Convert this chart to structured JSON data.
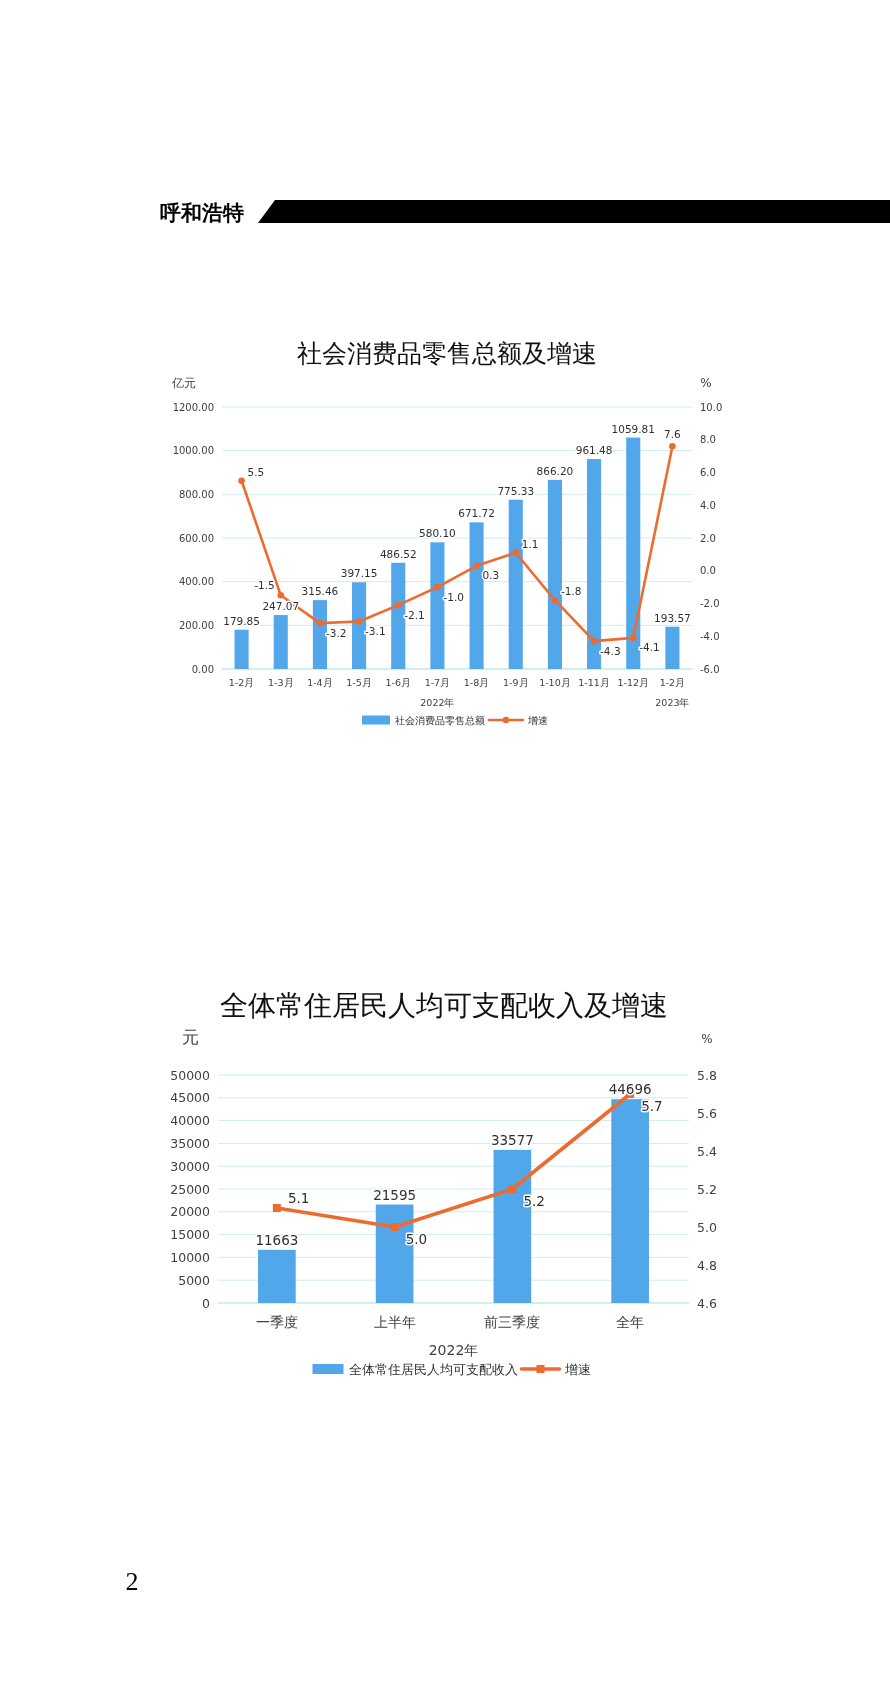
{
  "chart_data": [
    {
      "type": "bar",
      "title": "社会消费品零售总额及增速",
      "ylabel": "亿元",
      "y2label": "%",
      "xlabel": "2022年",
      "annotations": [
        "呼和浩特"
      ],
      "categories": [
        "1-2月",
        "1-3月",
        "1-4月",
        "1-5月",
        "1-6月",
        "1-7月",
        "1-8月",
        "1-9月",
        "1-10月",
        "1-11月",
        "1-12月",
        "1-2月\n2023年"
      ],
      "series": [
        {
          "name": "社会消费品零售总额",
          "type": "bar",
          "color": "#52a7ea",
          "values": [
            179.85,
            247.07,
            315.46,
            397.15,
            486.52,
            580.1,
            671.72,
            775.33,
            866.2,
            961.48,
            1059.81,
            193.57
          ],
          "value_labels": [
            "179.85",
            "247.07",
            "315.46",
            "397.15",
            "486.52",
            "580.10",
            "671.72",
            "775.33",
            "866.20",
            "961.48",
            "1059.81",
            "193.57"
          ]
        },
        {
          "name": "增速",
          "type": "line",
          "axis": "y2",
          "color": "#ed6b2f",
          "values": [
            5.5,
            -1.5,
            -3.2,
            -3.1,
            -2.1,
            -1.0,
            0.3,
            1.1,
            -1.8,
            -4.3,
            -4.1,
            7.6
          ],
          "value_labels": [
            "5.5",
            "-1.5",
            "-3.2",
            "-3.1",
            "-2.1",
            "-1.0",
            "0.3",
            "1.1",
            "-1.8",
            "-4.3",
            "-4.1",
            "7.6"
          ]
        }
      ],
      "ylim": [
        0,
        1200
      ],
      "yticks": [
        {
          "value": 0,
          "label": "0.00"
        },
        {
          "value": 200,
          "label": "200.00"
        },
        {
          "value": 400,
          "label": "400.00"
        },
        {
          "value": 600,
          "label": "600.00"
        },
        {
          "value": 800,
          "label": "800.00"
        },
        {
          "value": 1000,
          "label": "1000.00"
        },
        {
          "value": 1200,
          "label": "1200.00"
        }
      ],
      "y2lim": [
        -6,
        10
      ],
      "y2ticks": [
        {
          "value": -6,
          "label": "-6.0"
        },
        {
          "value": -4,
          "label": "-4.0"
        },
        {
          "value": -2,
          "label": "-2.0"
        },
        {
          "value": 0,
          "label": "0.0"
        },
        {
          "value": 2,
          "label": "2.0"
        },
        {
          "value": 4,
          "label": "4.0"
        },
        {
          "value": 6,
          "label": "6.0"
        },
        {
          "value": 8,
          "label": "8.0"
        },
        {
          "value": 10,
          "label": "10.0"
        }
      ],
      "grid": "y",
      "legend": "bottom",
      "marker": "circle",
      "line_style": "solid"
    },
    {
      "type": "bar",
      "title": "全体常住居民人均可支配收入及增速",
      "ylabel": "元",
      "y2label": "%",
      "xlabel": "2022年",
      "annotations": [
        "2"
      ],
      "categories": [
        "一季度",
        "上半年",
        "前三季度",
        "全年"
      ],
      "series": [
        {
          "name": "全体常住居民人均可支配收入",
          "type": "bar",
          "color": "#52a7ea",
          "values": [
            11663,
            21595,
            33577,
            44696
          ],
          "value_labels": [
            "11663",
            "21595",
            "33577",
            "44696"
          ]
        },
        {
          "name": "增速",
          "type": "line",
          "axis": "y2",
          "color": "#ed6b2f",
          "values": [
            5.1,
            5.0,
            5.2,
            5.7
          ],
          "value_labels": [
            "5.1",
            "5.0",
            "5.2",
            "5.7"
          ]
        }
      ],
      "ylim": [
        0,
        50000
      ],
      "yticks": [
        0,
        5000,
        10000,
        15000,
        20000,
        25000,
        30000,
        35000,
        40000,
        45000,
        50000
      ],
      "y2lim": [
        4.6,
        5.8
      ],
      "y2ticks": [
        4.6,
        4.8,
        {
          "value": 5,
          "label": "5.0"
        },
        5.2,
        5.4,
        5.6,
        5.8
      ],
      "grid": "y",
      "legend": "bottom",
      "marker": "square",
      "line_style": "solid"
    }
  ]
}
